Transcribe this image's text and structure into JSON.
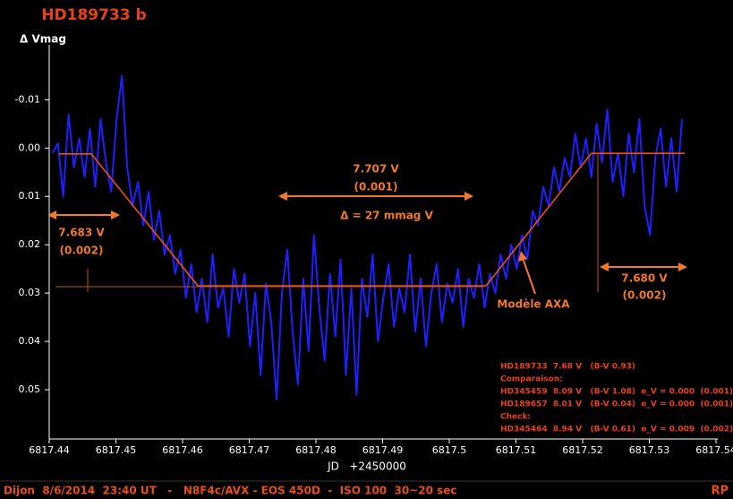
{
  "chart_data": {
    "type": "line",
    "title": "HD189733 b",
    "y_label": "Δ Vmag",
    "x_label": "JD   +2450000",
    "xlim": [
      6817.44,
      6817.54
    ],
    "xticks": [
      6817.44,
      6817.45,
      6817.46,
      6817.47,
      6817.48,
      6817.49,
      6817.5,
      6817.51,
      6817.52,
      6817.53,
      6817.54
    ],
    "ylim": [
      0.06,
      -0.021
    ],
    "yticks": [
      -0.01,
      {
        "value": 0,
        "label": "0.00"
      },
      0.01,
      0.02,
      0.03,
      0.04,
      0.05
    ],
    "series": [
      {
        "color": "#1f1fff",
        "x": [
          6817.4405,
          6817.4413,
          6817.4421,
          6817.4429,
          6817.4437,
          6817.4445,
          6817.4453,
          6817.4461,
          6817.4469,
          6817.4477,
          6817.4485,
          6817.4493,
          6817.4501,
          6817.4509,
          6817.4517,
          6817.4525,
          6817.4533,
          6817.4541,
          6817.4549,
          6817.4557,
          6817.4565,
          6817.4573,
          6817.4581,
          6817.4589,
          6817.4597,
          6817.4605,
          6817.4613,
          6817.4621,
          6817.4629,
          6817.4637,
          6817.4645,
          6817.4653,
          6817.4661,
          6817.4669,
          6817.4677,
          6817.4685,
          6817.4693,
          6817.4701,
          6817.4709,
          6817.4717,
          6817.4725,
          6817.4733,
          6817.4741,
          6817.4749,
          6817.4757,
          6817.4765,
          6817.4773,
          6817.4781,
          6817.4789,
          6817.4797,
          6817.4805,
          6817.4813,
          6817.4821,
          6817.4829,
          6817.4837,
          6817.4845,
          6817.4853,
          6817.4861,
          6817.4869,
          6817.4877,
          6817.4885,
          6817.4893,
          6817.4901,
          6817.4909,
          6817.4917,
          6817.4925,
          6817.4933,
          6817.4941,
          6817.4949,
          6817.4957,
          6817.4965,
          6817.4973,
          6817.4981,
          6817.4989,
          6817.4997,
          6817.5005,
          6817.5013,
          6817.5021,
          6817.5029,
          6817.5037,
          6817.5045,
          6817.5053,
          6817.5061,
          6817.5069,
          6817.5077,
          6817.5085,
          6817.5093,
          6817.5101,
          6817.5109,
          6817.5117,
          6817.5125,
          6817.5133,
          6817.5141,
          6817.5149,
          6817.5157,
          6817.5165,
          6817.5173,
          6817.5181,
          6817.5189,
          6817.5197,
          6817.5205,
          6817.5213,
          6817.5221,
          6817.5229,
          6817.5237,
          6817.5245,
          6817.5253,
          6817.5261,
          6817.5269,
          6817.5277,
          6817.5285,
          6817.5293,
          6817.5301,
          6817.5309,
          6817.5317,
          6817.5325,
          6817.5333,
          6817.5341,
          6817.5349
        ],
        "values": [
          0.001,
          -0.001,
          0.01,
          -0.007,
          0.004,
          -0.002,
          0.006,
          -0.004,
          0.008,
          -0.006,
          0.003,
          0.009,
          -0.006,
          -0.015,
          0.004,
          0.012,
          0.007,
          0.016,
          0.009,
          0.019,
          0.013,
          0.022,
          0.018,
          0.026,
          0.021,
          0.031,
          0.024,
          0.034,
          0.027,
          0.036,
          0.022,
          0.033,
          0.029,
          0.039,
          0.025,
          0.032,
          0.026,
          0.041,
          0.03,
          0.047,
          0.028,
          0.036,
          0.052,
          0.03,
          0.021,
          0.038,
          0.049,
          0.027,
          0.042,
          0.018,
          0.033,
          0.044,
          0.026,
          0.039,
          0.023,
          0.047,
          0.029,
          0.051,
          0.027,
          0.035,
          0.022,
          0.04,
          0.031,
          0.024,
          0.037,
          0.029,
          0.034,
          0.022,
          0.038,
          0.027,
          0.041,
          0.03,
          0.024,
          0.036,
          0.028,
          0.032,
          0.025,
          0.037,
          0.027,
          0.031,
          0.024,
          0.033,
          0.026,
          0.03,
          0.022,
          0.027,
          0.02,
          0.025,
          0.018,
          0.023,
          0.013,
          0.016,
          0.008,
          0.012,
          0.004,
          0.009,
          0.002,
          0.006,
          -0.003,
          0.004,
          -0.002,
          0.006,
          -0.005,
          0.003,
          -0.008,
          0.007,
          0.001,
          0.01,
          -0.003,
          0.005,
          -0.006,
          0.012,
          0.018,
          0.002,
          -0.004,
          0.008,
          -0.002,
          0.009,
          -0.006
        ]
      },
      {
        "color": "#e8501a",
        "x": [
          6817.4415,
          6817.4463,
          6817.4623,
          6817.5055,
          6817.5213,
          6817.5353
        ],
        "values": [
          0.0012,
          0.0012,
          0.0285,
          0.0285,
          0.0011,
          0.0011
        ]
      }
    ],
    "annotations": [
      "7.683 V",
      "(0.002)",
      "7.707 V",
      "(0.001)",
      "Δ = 27 mmag V",
      "7.680 V",
      "(0.002)",
      "Modèle AXA"
    ],
    "info_lines": [
      "HD189733  7.68 V   (B-V 0.93)",
      "Comparaison:",
      "HD345459  8.09 V   (B-V 1.08)  e_V = 0.000  (0.001)",
      "HD189657  8.01 V   (B-V 0.04)  e_V = 0.000  (0.001)",
      "Check:",
      "HD345464  8.94 V   (B-V 0.61)  e_V = 0.009  (0.002)"
    ],
    "footer": "Dijon  8/6/2014  23:40 UT   -   N8F4c/AVX - EOS 450D  -  ISO 100  30~20 sec",
    "footer_right": "RP"
  }
}
